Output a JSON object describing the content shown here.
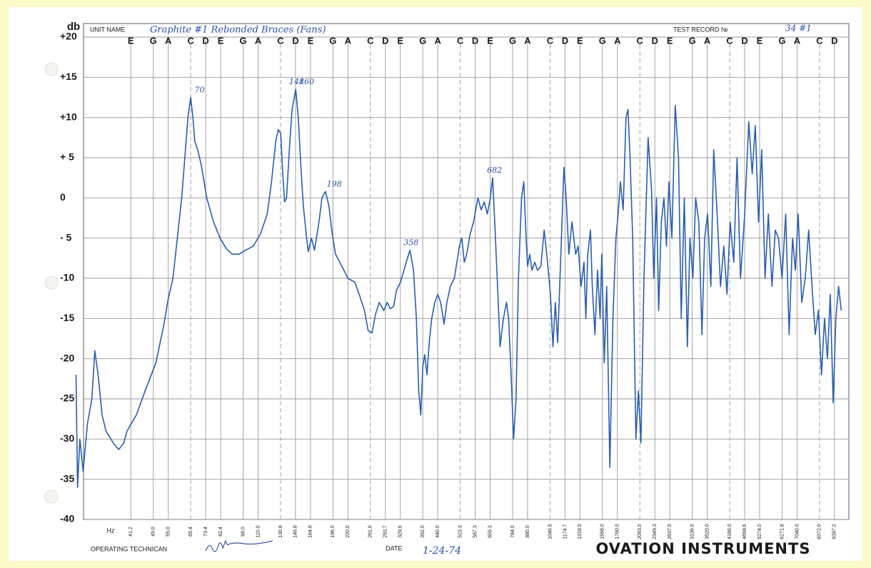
{
  "chart_data": {
    "type": "line",
    "unit_name_label": "UNIT NAME",
    "unit_name": "Graphite #1   Rebonded   Braces  (Fans)",
    "test_record_label": "TEST RECORD №",
    "test_record": "34 #1",
    "ylabel": "db",
    "xlabel": "Hz",
    "operator_label": "OPERATING TECHNICAN",
    "date_label": "DATE",
    "date": "1-24-74",
    "maker": "OVATION INSTRUMENTS",
    "xscale": "log",
    "grid": true,
    "color": "#2a5db0",
    "xlim": [
      28.6,
      10500
    ],
    "ylim": [
      -40,
      20
    ],
    "yticks": [
      {
        "value": 20,
        "label": "+20"
      },
      {
        "value": 15,
        "label": "+15"
      },
      {
        "value": 10,
        "label": "+10"
      },
      {
        "value": 5,
        "label": "+ 5"
      },
      0,
      {
        "value": -5,
        "label": "- 5"
      },
      -10,
      -15,
      -20,
      -25,
      -30,
      -35,
      -40
    ],
    "xticks": [
      41.2,
      {
        "value": 49,
        "label": "49.0"
      },
      {
        "value": 55,
        "label": "55.0"
      },
      65.4,
      73.4,
      82.4,
      {
        "value": 98,
        "label": "98.0"
      },
      {
        "value": 110,
        "label": "110.0"
      },
      130.8,
      146.8,
      164.8,
      {
        "value": 196,
        "label": "196.0"
      },
      {
        "value": 220,
        "label": "220.0"
      },
      261.6,
      293.7,
      329.6,
      {
        "value": 392,
        "label": "392.0"
      },
      {
        "value": 440,
        "label": "440.0"
      },
      523.3,
      587.3,
      659.3,
      {
        "value": 784,
        "label": "784.0"
      },
      {
        "value": 880,
        "label": "880.0"
      },
      1046.5,
      1174.7,
      1318.5,
      {
        "value": 1568,
        "label": "1568.0"
      },
      {
        "value": 1760,
        "label": "1760.0"
      },
      {
        "value": 2093,
        "label": "2093.0"
      },
      2349.3,
      {
        "value": 2637,
        "label": "2637.0"
      },
      {
        "value": 3136,
        "label": "3136.0"
      },
      {
        "value": 3520,
        "label": "3520.0"
      },
      {
        "value": 4186,
        "label": "4186.0"
      },
      4698.6,
      {
        "value": 5274,
        "label": "5274.0"
      },
      6271.8,
      {
        "value": 7040,
        "label": "7040.0"
      },
      {
        "value": 8372,
        "label": "8372.0"
      },
      9397.2
    ],
    "x_notes": [
      "E",
      "G",
      "A",
      "C",
      "D",
      "E",
      "G",
      "A",
      "C",
      "D",
      "E",
      "G",
      "A",
      "C",
      "D",
      "E",
      "G",
      "A",
      "C",
      "D",
      "E",
      "G",
      "A",
      "C",
      "D",
      "E",
      "G",
      "A",
      "C",
      "D",
      "E",
      "G",
      "A",
      "C",
      "D",
      "E",
      "G",
      "A",
      "C",
      "D"
    ],
    "annotations": [
      70,
      148,
      160,
      198,
      358,
      682
    ],
    "x": [
      27,
      27.3,
      27.8,
      28.5,
      29.5,
      30.5,
      31.2,
      32,
      33,
      34,
      36,
      37.5,
      39,
      40,
      43,
      46,
      50,
      53,
      55,
      57,
      59,
      61,
      62.5,
      64,
      65.4,
      66.5,
      67.5,
      69,
      71,
      74,
      78,
      82,
      86,
      90,
      95,
      100,
      106,
      112,
      118,
      122,
      126,
      128.5,
      131,
      133,
      135,
      137,
      140,
      143,
      147,
      150,
      153,
      156,
      160,
      162,
      166,
      170,
      176,
      180,
      185,
      190,
      195,
      200,
      210,
      220,
      232,
      240,
      250,
      257,
      265,
      272,
      280,
      290,
      298,
      305,
      313,
      320,
      330,
      345,
      355,
      365,
      373,
      380,
      386,
      392,
      398,
      405,
      412,
      420,
      430,
      440,
      450,
      462,
      472,
      485,
      500,
      520,
      530,
      540,
      550,
      565,
      580,
      600,
      615,
      630,
      645,
      660,
      672,
      685,
      700,
      712,
      730,
      748,
      760,
      775,
      790,
      805,
      820,
      840,
      855,
      870,
      880,
      895,
      910,
      930,
      950,
      975,
      1000,
      1020,
      1050,
      1070,
      1090,
      1110,
      1140,
      1165,
      1185,
      1210,
      1240,
      1275,
      1300,
      1330,
      1360,
      1380,
      1400,
      1430,
      1450,
      1480,
      1510,
      1540,
      1560,
      1590,
      1620,
      1660,
      1700,
      1740,
      1770,
      1800,
      1840,
      1880,
      1910,
      1940,
      1980,
      2030,
      2070,
      2110,
      2160,
      2230,
      2290,
      2330,
      2380,
      2420,
      2470,
      2520,
      2570,
      2620,
      2680,
      2750,
      2820,
      2880,
      2950,
      3020,
      3080,
      3150,
      3220,
      3300,
      3380,
      3450,
      3530,
      3620,
      3700,
      3800,
      3900,
      4000,
      4100,
      4200,
      4320,
      4430,
      4550,
      4700,
      4850,
      4980,
      5100,
      5230,
      5360,
      5500,
      5640,
      5800,
      5950,
      6100,
      6270,
      6450,
      6620,
      6800,
      6950,
      7100,
      7300,
      7500,
      7700,
      7900,
      8100,
      8300,
      8500,
      8700,
      8900,
      9100,
      9300,
      9500,
      9700,
      9900
    ],
    "values": [
      -22,
      -36,
      -30,
      -34,
      -28,
      -25,
      -19,
      -22,
      -27,
      -29,
      -30.5,
      -31.3,
      -30.5,
      -29,
      -27,
      -24,
      -20.5,
      -16,
      -12.5,
      -10,
      -5,
      0,
      5,
      10,
      12.5,
      10,
      7,
      6,
      4,
      0,
      -3,
      -5,
      -6.3,
      -7,
      -7,
      -6.5,
      -6,
      -4.5,
      -2,
      2,
      7,
      8.5,
      8,
      3,
      -0.5,
      0,
      6,
      11,
      13.5,
      10,
      4,
      -1,
      -5,
      -6.7,
      -5,
      -6.5,
      -3,
      0,
      0.8,
      -1,
      -4.5,
      -7,
      -8.5,
      -10,
      -10.5,
      -12,
      -14,
      -16.5,
      -16.8,
      -14.5,
      -13,
      -14,
      -13,
      -13.8,
      -13.5,
      -11.5,
      -10.5,
      -8,
      -6.5,
      -9,
      -15,
      -24,
      -27,
      -21,
      -19.5,
      -22,
      -18,
      -15,
      -13,
      -12,
      -13,
      -15.7,
      -13,
      -11,
      -10,
      -6,
      -5,
      -8,
      -7,
      -4.5,
      -3,
      0,
      -1.5,
      -0.5,
      -2,
      0,
      2.5,
      -4,
      -12,
      -18.5,
      -15,
      -13,
      -15,
      -22,
      -30,
      -25,
      -10,
      0,
      2,
      -5,
      -8.5,
      -7,
      -9,
      -8,
      -9,
      -8.5,
      -4,
      -7,
      -12,
      -18.5,
      -13,
      -18,
      -6,
      3.8,
      0,
      -7,
      -3,
      -7,
      -6,
      -11,
      -8,
      -15,
      -7,
      -4,
      -11,
      -17,
      -9,
      -15,
      -7,
      -20.5,
      -11,
      -33.5,
      -15,
      -5,
      -2,
      2,
      -1.5,
      10,
      11,
      5,
      -5,
      -30,
      -24,
      -30.5,
      -10,
      7.5,
      1,
      -10,
      0,
      -14,
      -3,
      0,
      -6,
      2,
      -5,
      11.5,
      5,
      -15,
      0,
      -18.5,
      -5,
      -10,
      0,
      -3,
      -17,
      -5,
      -2,
      -11,
      6,
      -2,
      -11,
      -6,
      -12,
      -3,
      -8,
      5,
      -10,
      -2,
      9.5,
      3,
      9,
      -3,
      6,
      -10,
      -2,
      -11,
      -4,
      -5,
      -10,
      -2,
      -17,
      -5,
      -9,
      -2,
      -13,
      -10,
      -4,
      -11,
      -17,
      -14,
      -22,
      -15,
      -20,
      -12,
      -25.5,
      -15,
      -11,
      -14
    ]
  }
}
